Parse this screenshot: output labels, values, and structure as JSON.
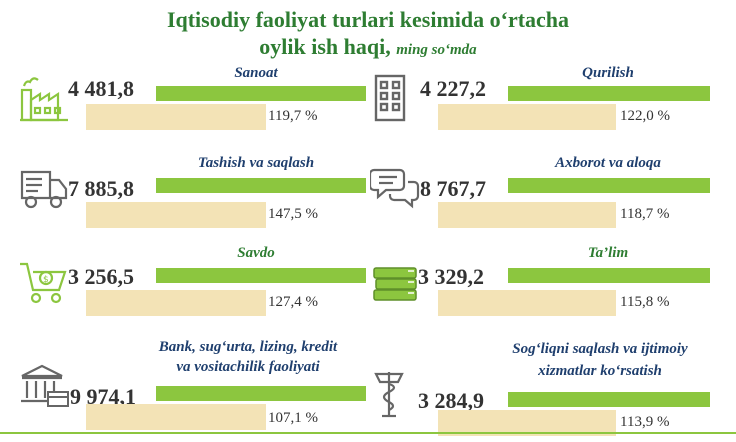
{
  "title": {
    "line1": "Iqtisodiy faoliyat turlari kesimida o‘rtacha",
    "line2": "oylik ish haqi,",
    "unit": "ming so‘mda"
  },
  "chart_data": {
    "type": "bar",
    "title": "Iqtisodiy faoliyat turlari kesimida o‘rtacha oylik ish haqi, ming so‘mda",
    "categories": [
      "Sanoat",
      "Qurilish",
      "Tashish va saqlash",
      "Axborot va aloqa",
      "Savdo",
      "Ta’lim",
      "Bank, sug‘urta, lizing, kredit va vositachilik faoliyati",
      "Sog‘liqni saqlash va ijtimoiy xizmatlar ko‘rsatish"
    ],
    "series": [
      {
        "values": [
          4481.8,
          4227.2,
          7885.8,
          8767.7,
          3256.5,
          3329.2,
          9974.1,
          3284.9
        ]
      },
      {
        "values": [
          119.7,
          122.0,
          147.5,
          118.7,
          127.4,
          115.8,
          107.1,
          113.9
        ]
      }
    ],
    "colors": {
      "value_bar": "#8cc63f",
      "percent_bar": "#f3e3b6",
      "title": "#2e7d32",
      "label": "#1f3f6e",
      "icon": "#8cc63f"
    }
  },
  "cards": [
    {
      "label_lines": [
        "Sanoat"
      ],
      "label_color": "blue",
      "value": "4 481,8",
      "percent": "119,7 %",
      "icon": "factory-icon"
    },
    {
      "label_lines": [
        "Qurilish"
      ],
      "label_color": "blue",
      "value": "4 227,2",
      "percent": "122,0 %",
      "icon": "building-icon"
    },
    {
      "label_lines": [
        "Tashish va saqlash"
      ],
      "label_color": "blue",
      "value": "7 885,8",
      "percent": "147,5 %",
      "icon": "truck-icon"
    },
    {
      "label_lines": [
        "Axborot va aloqa"
      ],
      "label_color": "blue",
      "value": "8 767,7",
      "percent": "118,7 %",
      "icon": "chat-bubbles-icon"
    },
    {
      "label_lines": [
        "Savdo"
      ],
      "label_color": "green",
      "value": "3 256,5",
      "percent": "127,4 %",
      "icon": "shopping-cart-icon"
    },
    {
      "label_lines": [
        "Ta’lim"
      ],
      "label_color": "green",
      "value": "3 329,2",
      "percent": "115,8 %",
      "icon": "books-icon"
    },
    {
      "label_lines": [
        "Bank, sug‘urta, lizing, kredit",
        "va vositachilik faoliyati"
      ],
      "label_color": "blue",
      "value": "9 974,1",
      "percent": "107,1 %",
      "icon": "bank-icon"
    },
    {
      "label_lines": [
        "Sog‘liqni saqlash va ijtimoiy",
        "xizmatlar ko‘rsatish"
      ],
      "label_color": "blue",
      "value": "3 284,9",
      "percent": "113,9 %",
      "icon": "caduceus-icon"
    }
  ]
}
